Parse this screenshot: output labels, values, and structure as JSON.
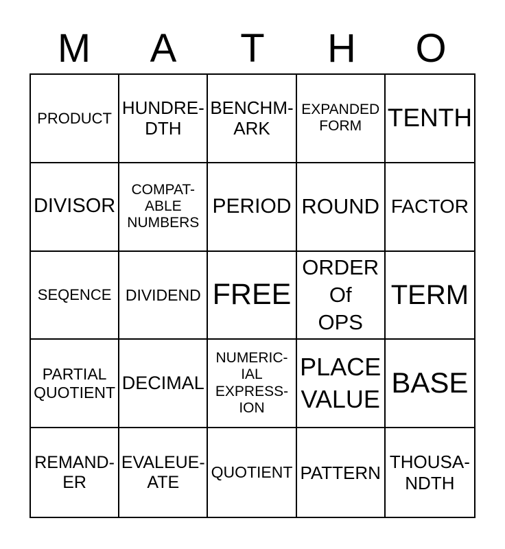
{
  "title": {
    "text": "MATHO",
    "letters": [
      "M",
      "A",
      "T",
      "H",
      "O"
    ]
  },
  "grid": {
    "rows": [
      {
        "cells": [
          {
            "text": "PRODUCT"
          },
          {
            "text": "HUNDRE-\nDTH"
          },
          {
            "text": "BENCHM-\nARK"
          },
          {
            "text": "EXPANDED\nFORM"
          },
          {
            "text": "TENTH"
          }
        ]
      },
      {
        "cells": [
          {
            "text": "DIVISOR"
          },
          {
            "text": "COMPAT-\nABLE\nNUMBERS"
          },
          {
            "text": "PERIOD"
          },
          {
            "text": "ROUND"
          },
          {
            "text": "FACTOR"
          }
        ]
      },
      {
        "cells": [
          {
            "text": "SEQENCE"
          },
          {
            "text": "DIVIDEND"
          },
          {
            "text": "FREE"
          },
          {
            "text": "ORDER\nOf\nOPS"
          },
          {
            "text": "TERM"
          }
        ]
      },
      {
        "cells": [
          {
            "text": "PARTIAL\nQUOTIENT"
          },
          {
            "text": "DECIMAL"
          },
          {
            "text": "NUMERIC-\nIAL\nEXPRESS-\nION"
          },
          {
            "text": "PLACE\nVALUE"
          },
          {
            "text": "BASE"
          }
        ]
      },
      {
        "cells": [
          {
            "text": "REMAND-\nER"
          },
          {
            "text": "EVALEUE-\nATE"
          },
          {
            "text": "QUOTIENT"
          },
          {
            "text": "PATTERN"
          },
          {
            "text": "THOUSA-\nNDTH"
          }
        ]
      }
    ]
  },
  "colors": {
    "text": "#000000",
    "border": "#000000",
    "background": "#ffffff"
  }
}
